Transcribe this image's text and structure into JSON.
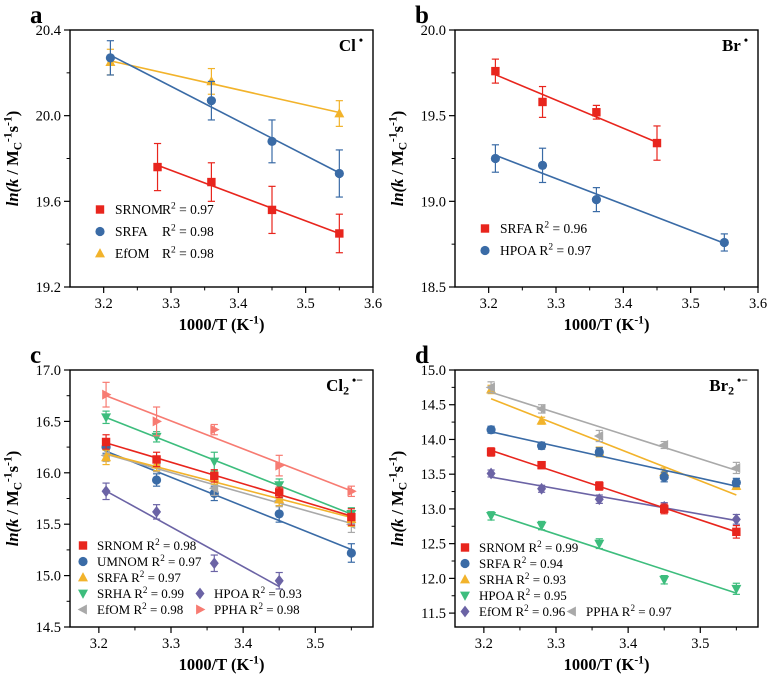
{
  "chart_data": [
    {
      "label": "a",
      "type": "scatter",
      "title_parts": [
        {
          "t": "Cl"
        },
        {
          "t": " •",
          "s": "sup"
        }
      ],
      "xlabel_parts": [
        {
          "t": "1000/T (K"
        },
        {
          "t": "-1",
          "s": "sup"
        },
        {
          "t": ")"
        }
      ],
      "ylabel_parts": [
        {
          "t": "ln(k",
          "s": "i"
        },
        {
          "t": " / M"
        },
        {
          "t": "C",
          "s": "sub"
        },
        {
          "t": "-1",
          "s": "sup"
        },
        {
          "t": "s"
        },
        {
          "t": "-1",
          "s": "sup"
        },
        {
          "t": ")"
        }
      ],
      "xlim": [
        3.15,
        3.6
      ],
      "ylim": [
        19.2,
        20.4
      ],
      "xtick_vals": [
        3.2,
        3.3,
        3.4,
        3.5,
        3.6
      ],
      "xtick_labels": [
        "3.2",
        "3.3",
        "3.4",
        "3.5",
        "3.6"
      ],
      "ytick_vals": [
        19.2,
        19.6,
        20.0,
        20.4
      ],
      "ytick_labels": [
        "19.2",
        "19.6",
        "20.0",
        "20.4"
      ],
      "series": [
        {
          "name": "EfOM",
          "marker": "triangle-up",
          "color": "#f2b32b",
          "r2": "0.98",
          "x": [
            3.21,
            3.36,
            3.55
          ],
          "y": [
            20.25,
            20.16,
            20.01
          ],
          "err": [
            0.06,
            0.06,
            0.06
          ]
        },
        {
          "name": "SRFA",
          "marker": "circle",
          "color": "#3a6ba6",
          "r2": "0.98",
          "x": [
            3.21,
            3.36,
            3.45,
            3.55
          ],
          "y": [
            20.27,
            20.07,
            19.88,
            19.73
          ],
          "err": [
            0.08,
            0.09,
            0.1,
            0.11
          ]
        },
        {
          "name": "SRNOM",
          "marker": "square",
          "color": "#e8251d",
          "r2": "0.97",
          "x": [
            3.28,
            3.36,
            3.45,
            3.55
          ],
          "y": [
            19.76,
            19.69,
            19.56,
            19.45
          ],
          "err": [
            0.11,
            0.09,
            0.11,
            0.09
          ]
        }
      ],
      "legend": {
        "marker_x": 100,
        "row_ys": [
          214,
          236,
          258
        ],
        "text_dx": 15,
        "col2_dx": 0,
        "align_width": 47,
        "font": 13.5,
        "rows": [
          [
            "SRNOM"
          ],
          [
            "SRFA"
          ],
          [
            "EfOM"
          ]
        ]
      }
    },
    {
      "label": "b",
      "type": "scatter",
      "title_parts": [
        {
          "t": "Br"
        },
        {
          "t": " •",
          "s": "sup"
        }
      ],
      "xlabel_parts": [
        {
          "t": "1000/T (K"
        },
        {
          "t": "-1",
          "s": "sup"
        },
        {
          "t": ")"
        }
      ],
      "ylabel_parts": [
        {
          "t": "ln(k",
          "s": "i"
        },
        {
          "t": " / M"
        },
        {
          "t": "C",
          "s": "sub"
        },
        {
          "t": "-1",
          "s": "sup"
        },
        {
          "t": "s"
        },
        {
          "t": "-1",
          "s": "sup"
        },
        {
          "t": ")"
        }
      ],
      "xlim": [
        3.15,
        3.6
      ],
      "ylim": [
        18.5,
        20.0
      ],
      "xtick_vals": [
        3.2,
        3.3,
        3.4,
        3.5,
        3.6
      ],
      "xtick_labels": [
        "3.2",
        "3.3",
        "3.4",
        "3.5",
        "3.6"
      ],
      "ytick_vals": [
        18.5,
        19.0,
        19.5,
        20.0
      ],
      "ytick_labels": [
        "18.5",
        "19.0",
        "19.5",
        "20.0"
      ],
      "series": [
        {
          "name": "HPOA",
          "marker": "circle",
          "color": "#3a6ba6",
          "r2": "0.97",
          "x": [
            3.21,
            3.28,
            3.36,
            3.55
          ],
          "y": [
            19.25,
            19.21,
            19.01,
            18.76
          ],
          "err": [
            0.08,
            0.1,
            0.07,
            0.05
          ]
        },
        {
          "name": "SRFA",
          "marker": "square",
          "color": "#e8251d",
          "r2": "0.96",
          "x": [
            3.21,
            3.28,
            3.36,
            3.45
          ],
          "y": [
            19.76,
            19.58,
            19.52,
            19.34
          ],
          "err": [
            0.07,
            0.09,
            0.04,
            0.1
          ]
        }
      ],
      "legend": {
        "marker_x": 100,
        "row_ys": [
          233,
          255
        ],
        "text_dx": 15,
        "col2_dx": 0,
        "align_width": 0,
        "font": 13.5,
        "rows": [
          [
            "SRFA"
          ],
          [
            "HPOA"
          ]
        ]
      }
    },
    {
      "label": "c",
      "type": "scatter",
      "title_parts": [
        {
          "t": "Cl"
        },
        {
          "t": "2",
          "s": "sub"
        },
        {
          "t": " •−",
          "s": "sup"
        }
      ],
      "xlabel_parts": [
        {
          "t": "1000/T (K"
        },
        {
          "t": "-1",
          "s": "sup"
        },
        {
          "t": ")"
        }
      ],
      "ylabel_parts": [
        {
          "t": "ln(k",
          "s": "i"
        },
        {
          "t": " / M"
        },
        {
          "t": "C",
          "s": "sub"
        },
        {
          "t": "-1",
          "s": "sup"
        },
        {
          "t": "s"
        },
        {
          "t": "-1",
          "s": "sup"
        },
        {
          "t": ")"
        }
      ],
      "xlim": [
        3.16,
        3.58
      ],
      "ylim": [
        14.5,
        17.0
      ],
      "xtick_vals": [
        3.2,
        3.3,
        3.4,
        3.5
      ],
      "xtick_labels": [
        "3.2",
        "3.3",
        "3.4",
        "3.5"
      ],
      "ytick_vals": [
        14.5,
        15.0,
        15.5,
        16.0,
        16.5,
        17.0
      ],
      "ytick_labels": [
        "14.5",
        "15.0",
        "15.5",
        "16.0",
        "16.5",
        "17.0"
      ],
      "series": [
        {
          "name": "HPOA",
          "marker": "diamond",
          "color": "#6b63a5",
          "r2": "0.93",
          "x": [
            3.21,
            3.28,
            3.36,
            3.45
          ],
          "y": [
            15.82,
            15.62,
            15.12,
            14.95
          ],
          "err": [
            0.08,
            0.07,
            0.08,
            0.08
          ]
        },
        {
          "name": "UMNOM",
          "marker": "circle",
          "color": "#3a6ba6",
          "r2": "0.97",
          "x": [
            3.21,
            3.28,
            3.36,
            3.45,
            3.55
          ],
          "y": [
            16.25,
            15.93,
            15.8,
            15.6,
            15.22
          ],
          "err": [
            0.06,
            0.06,
            0.07,
            0.08,
            0.09
          ]
        },
        {
          "name": "EfOM",
          "marker": "triangle-left",
          "color": "#a9a9a9",
          "r2": "0.98",
          "x": [
            3.21,
            3.28,
            3.36,
            3.45,
            3.55
          ],
          "y": [
            16.17,
            16.07,
            15.85,
            15.73,
            15.5
          ],
          "err": [
            0.06,
            0.06,
            0.07,
            0.06,
            0.08
          ]
        },
        {
          "name": "SRFA",
          "marker": "triangle-up",
          "color": "#f2b32b",
          "r2": "0.97",
          "x": [
            3.21,
            3.28,
            3.36,
            3.45,
            3.55
          ],
          "y": [
            16.15,
            16.08,
            15.95,
            15.74,
            15.55
          ],
          "err": [
            0.07,
            0.06,
            0.06,
            0.06,
            0.07
          ]
        },
        {
          "name": "SRHA",
          "marker": "triangle-down",
          "color": "#3dbd7d",
          "r2": "0.99",
          "x": [
            3.21,
            3.28,
            3.36,
            3.45,
            3.55
          ],
          "y": [
            16.54,
            16.35,
            16.11,
            15.88,
            15.6
          ],
          "err": [
            0.06,
            0.05,
            0.09,
            0.06,
            0.06
          ]
        },
        {
          "name": "PPHA",
          "marker": "triangle-right",
          "color": "#f77b72",
          "r2": "0.98",
          "x": [
            3.21,
            3.28,
            3.36,
            3.45,
            3.55
          ],
          "y": [
            16.76,
            16.5,
            16.42,
            16.07,
            15.82
          ],
          "err": [
            0.12,
            0.14,
            0.05,
            0.1,
            0.05
          ]
        },
        {
          "name": "SRNOM",
          "marker": "square",
          "color": "#e8251d",
          "r2": "0.98",
          "x": [
            3.21,
            3.28,
            3.36,
            3.45,
            3.55
          ],
          "y": [
            16.3,
            16.13,
            15.97,
            15.81,
            15.57
          ],
          "err": [
            0.07,
            0.07,
            0.06,
            0.05,
            0.08
          ]
        }
      ],
      "legend": {
        "marker_x": 83,
        "row_ys": [
          210,
          226,
          242,
          258,
          274
        ],
        "text_dx": 14,
        "col2_dx": 117,
        "align_width": 0,
        "font": 13,
        "rows": [
          [
            "SRNOM"
          ],
          [
            "UMNOM"
          ],
          [
            "SRFA"
          ],
          [
            "SRHA",
            "HPOA"
          ],
          [
            "EfOM",
            "PPHA"
          ]
        ]
      }
    },
    {
      "label": "d",
      "type": "scatter",
      "title_parts": [
        {
          "t": "Br"
        },
        {
          "t": "2",
          "s": "sub"
        },
        {
          "t": " •−",
          "s": "sup"
        }
      ],
      "xlabel_parts": [
        {
          "t": "1000/T (K"
        },
        {
          "t": "-1",
          "s": "sup"
        },
        {
          "t": ")"
        }
      ],
      "ylabel_parts": [
        {
          "t": "ln(k",
          "s": "i"
        },
        {
          "t": " / M"
        },
        {
          "t": "C",
          "s": "sub"
        },
        {
          "t": "-1",
          "s": "sup"
        },
        {
          "t": "s"
        },
        {
          "t": "-1",
          "s": "sup"
        },
        {
          "t": ")"
        }
      ],
      "xlim": [
        3.16,
        3.58
      ],
      "ylim": [
        11.3,
        15.0
      ],
      "xtick_vals": [
        3.2,
        3.3,
        3.4,
        3.5
      ],
      "xtick_labels": [
        "3.2",
        "3.3",
        "3.4",
        "3.5"
      ],
      "ytick_vals": [
        11.5,
        12.0,
        12.5,
        13.0,
        13.5,
        14.0,
        14.5,
        15.0
      ],
      "ytick_labels": [
        "11.5",
        "12.0",
        "12.5",
        "13.0",
        "13.5",
        "14.0",
        "14.5",
        "15.0"
      ],
      "series": [
        {
          "name": "HPOA",
          "marker": "triangle-down",
          "color": "#3dbd7d",
          "r2": "0.95",
          "x": [
            3.21,
            3.28,
            3.36,
            3.45,
            3.55
          ],
          "y": [
            12.9,
            12.76,
            12.5,
            11.98,
            11.85
          ],
          "err": [
            0.06,
            0.06,
            0.07,
            0.06,
            0.08
          ]
        },
        {
          "name": "EfOM",
          "marker": "diamond",
          "color": "#6b63a5",
          "r2": "0.96",
          "x": [
            3.21,
            3.28,
            3.36,
            3.45,
            3.55
          ],
          "y": [
            13.51,
            13.29,
            13.14,
            13.03,
            12.85
          ],
          "err": [
            0.05,
            0.05,
            0.06,
            0.06,
            0.07
          ]
        },
        {
          "name": "SRHA",
          "marker": "triangle-up",
          "color": "#f2b32b",
          "r2": "0.93",
          "x": [
            3.21,
            3.28,
            3.36,
            3.45,
            3.55
          ],
          "y": [
            14.72,
            14.27,
            13.82,
            13.53,
            13.33
          ],
          "err": [
            0.06,
            0.05,
            0.07,
            0.06,
            0.05
          ]
        },
        {
          "name": "PPHA",
          "marker": "triangle-left",
          "color": "#a9a9a9",
          "r2": "0.97",
          "x": [
            3.21,
            3.28,
            3.36,
            3.45,
            3.55
          ],
          "y": [
            14.75,
            14.44,
            14.05,
            13.92,
            13.59
          ],
          "err": [
            0.08,
            0.06,
            0.08,
            0.05,
            0.08
          ]
        },
        {
          "name": "SRFA",
          "marker": "circle",
          "color": "#3a6ba6",
          "r2": "0.94",
          "x": [
            3.21,
            3.28,
            3.36,
            3.45,
            3.55
          ],
          "y": [
            14.14,
            13.91,
            13.82,
            13.46,
            13.38
          ],
          "err": [
            0.05,
            0.05,
            0.06,
            0.07,
            0.06
          ]
        },
        {
          "name": "SRNOM",
          "marker": "square",
          "color": "#e8251d",
          "r2": "0.99",
          "x": [
            3.21,
            3.28,
            3.36,
            3.45,
            3.55
          ],
          "y": [
            13.82,
            13.63,
            13.33,
            13.0,
            12.67
          ],
          "err": [
            0.06,
            0.05,
            0.06,
            0.07,
            0.09
          ]
        }
      ],
      "legend": {
        "marker_x": 80,
        "row_ys": [
          212,
          228,
          244,
          260,
          276
        ],
        "text_dx": 14,
        "col2_dx": 107,
        "align_width": 0,
        "font": 13,
        "rows": [
          [
            "SRNOM"
          ],
          [
            "SRFA"
          ],
          [
            "SRHA"
          ],
          [
            "HPOA"
          ],
          [
            "EfOM",
            "PPHA"
          ]
        ]
      }
    }
  ]
}
